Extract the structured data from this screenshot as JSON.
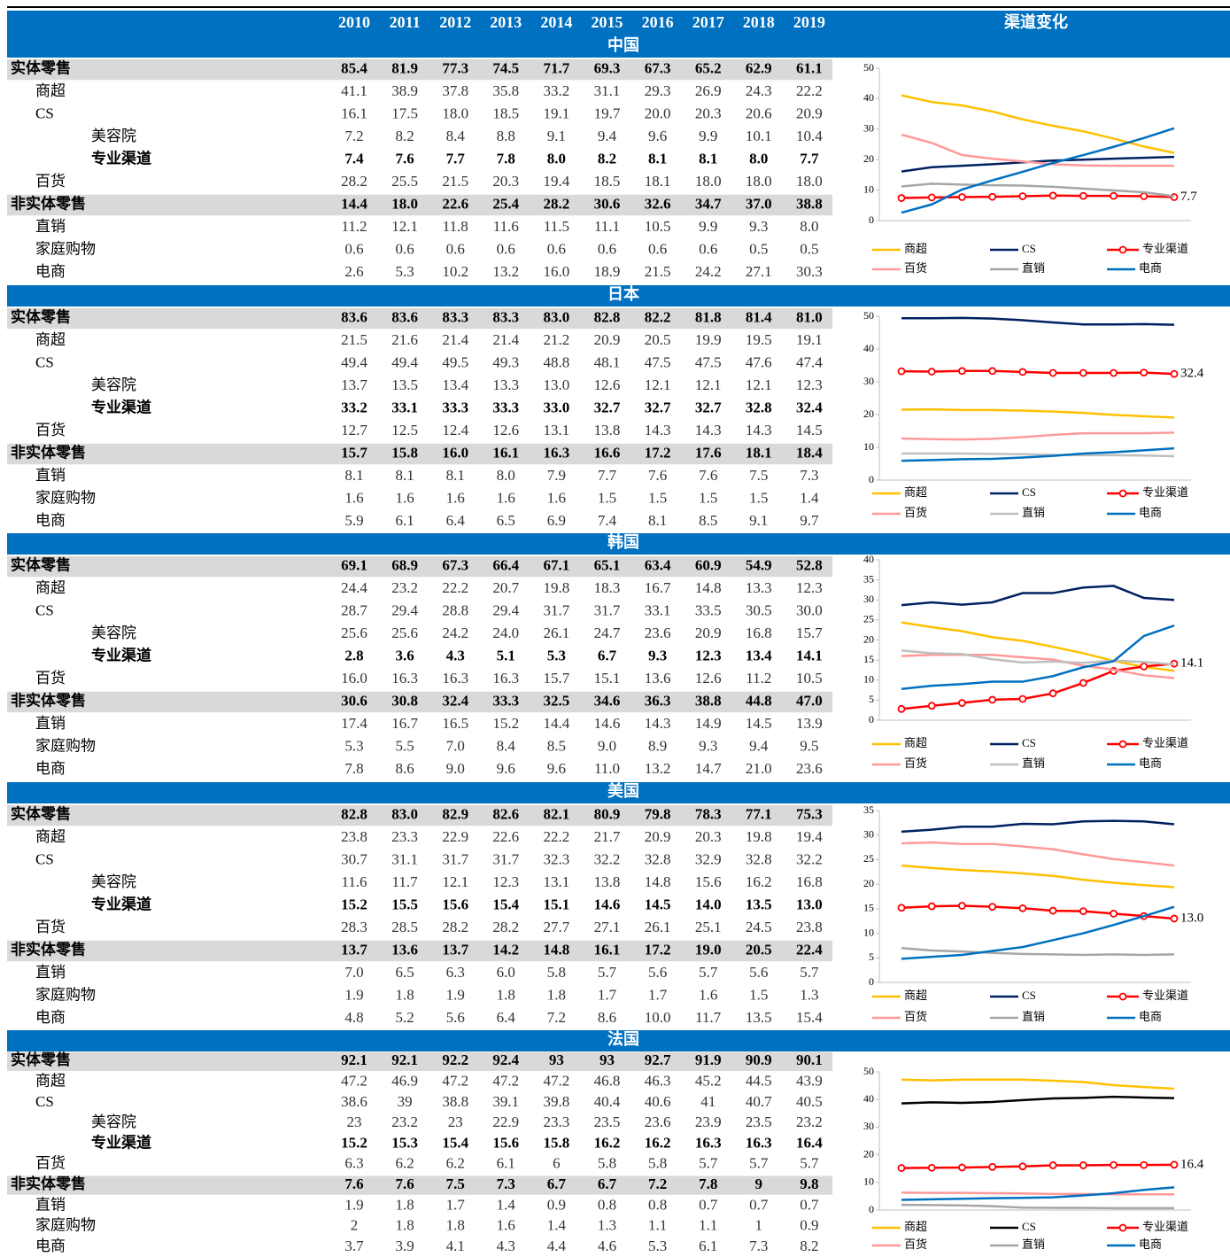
{
  "header": {
    "years": [
      "2010",
      "2011",
      "2012",
      "2013",
      "2014",
      "2015",
      "2016",
      "2017",
      "2018",
      "2019"
    ],
    "chart_title": "渠道变化"
  },
  "sections": [
    {
      "title": "中国",
      "rows": [
        {
          "label": "实体零售",
          "values": [
            "85.4",
            "81.9",
            "77.3",
            "74.5",
            "71.7",
            "69.3",
            "67.3",
            "65.2",
            "62.9",
            "61.1"
          ]
        },
        {
          "label": "商超",
          "values": [
            "41.1",
            "38.9",
            "37.8",
            "35.8",
            "33.2",
            "31.1",
            "29.3",
            "26.9",
            "24.3",
            "22.2"
          ]
        },
        {
          "label": "CS",
          "values": [
            "16.1",
            "17.5",
            "18.0",
            "18.5",
            "19.1",
            "19.7",
            "20.0",
            "20.3",
            "20.6",
            "20.9"
          ]
        },
        {
          "label": "美容院",
          "values": [
            "7.2",
            "8.2",
            "8.4",
            "8.8",
            "9.1",
            "9.4",
            "9.6",
            "9.9",
            "10.1",
            "10.4"
          ]
        },
        {
          "label": "专业渠道",
          "values": [
            "7.4",
            "7.6",
            "7.7",
            "7.8",
            "8.0",
            "8.2",
            "8.1",
            "8.1",
            "8.0",
            "7.7"
          ]
        },
        {
          "label": "百货",
          "values": [
            "28.2",
            "25.5",
            "21.5",
            "20.3",
            "19.4",
            "18.5",
            "18.1",
            "18.0",
            "18.0",
            "18.0"
          ]
        },
        {
          "label": "非实体零售",
          "values": [
            "14.4",
            "18.0",
            "22.6",
            "25.4",
            "28.2",
            "30.6",
            "32.6",
            "34.7",
            "37.0",
            "38.8"
          ]
        },
        {
          "label": "直销",
          "values": [
            "11.2",
            "12.1",
            "11.8",
            "11.6",
            "11.5",
            "11.1",
            "10.5",
            "9.9",
            "9.3",
            "8.0"
          ]
        },
        {
          "label": "家庭购物",
          "values": [
            "0.6",
            "0.6",
            "0.6",
            "0.6",
            "0.6",
            "0.6",
            "0.6",
            "0.6",
            "0.5",
            "0.5"
          ]
        },
        {
          "label": "电商",
          "values": [
            "2.6",
            "5.3",
            "10.2",
            "13.2",
            "16.0",
            "18.9",
            "21.5",
            "24.2",
            "27.1",
            "30.3"
          ]
        }
      ],
      "chart": {
        "ylim": [
          0,
          50
        ],
        "yticks": [
          0,
          10,
          20,
          30,
          40,
          50
        ],
        "series": [
          {
            "row": 1,
            "color": "#ffc000"
          },
          {
            "row": 2,
            "color": "#002060"
          },
          {
            "row": 4,
            "color": "#ff0000",
            "markers": true,
            "end_label": true
          },
          {
            "row": 5,
            "color": "#ff9999"
          },
          {
            "row": 7,
            "color": "#a6a6a6"
          },
          {
            "row": 9,
            "color": "#0070c0"
          }
        ]
      }
    },
    {
      "title": "日本",
      "rows": [
        {
          "label": "实体零售",
          "values": [
            "83.6",
            "83.6",
            "83.3",
            "83.3",
            "83.0",
            "82.8",
            "82.2",
            "81.8",
            "81.4",
            "81.0"
          ]
        },
        {
          "label": "商超",
          "values": [
            "21.5",
            "21.6",
            "21.4",
            "21.4",
            "21.2",
            "20.9",
            "20.5",
            "19.9",
            "19.5",
            "19.1"
          ]
        },
        {
          "label": "CS",
          "values": [
            "49.4",
            "49.4",
            "49.5",
            "49.3",
            "48.8",
            "48.1",
            "47.5",
            "47.5",
            "47.6",
            "47.4"
          ]
        },
        {
          "label": "美容院",
          "values": [
            "13.7",
            "13.5",
            "13.4",
            "13.3",
            "13.0",
            "12.6",
            "12.1",
            "12.1",
            "12.1",
            "12.3"
          ]
        },
        {
          "label": "专业渠道",
          "values": [
            "33.2",
            "33.1",
            "33.3",
            "33.3",
            "33.0",
            "32.7",
            "32.7",
            "32.7",
            "32.8",
            "32.4"
          ]
        },
        {
          "label": "百货",
          "values": [
            "12.7",
            "12.5",
            "12.4",
            "12.6",
            "13.1",
            "13.8",
            "14.3",
            "14.3",
            "14.3",
            "14.5"
          ]
        },
        {
          "label": "非实体零售",
          "values": [
            "15.7",
            "15.8",
            "16.0",
            "16.1",
            "16.3",
            "16.6",
            "17.2",
            "17.6",
            "18.1",
            "18.4"
          ]
        },
        {
          "label": "直销",
          "values": [
            "8.1",
            "8.1",
            "8.1",
            "8.0",
            "7.9",
            "7.7",
            "7.6",
            "7.6",
            "7.5",
            "7.3"
          ]
        },
        {
          "label": "家庭购物",
          "values": [
            "1.6",
            "1.6",
            "1.6",
            "1.6",
            "1.6",
            "1.5",
            "1.5",
            "1.5",
            "1.5",
            "1.4"
          ]
        },
        {
          "label": "电商",
          "values": [
            "5.9",
            "6.1",
            "6.4",
            "6.5",
            "6.9",
            "7.4",
            "8.1",
            "8.5",
            "9.1",
            "9.7"
          ]
        }
      ],
      "chart": {
        "ylim": [
          0,
          50
        ],
        "yticks": [
          0,
          10,
          20,
          30,
          40,
          50
        ],
        "series": [
          {
            "row": 1,
            "color": "#ffc000"
          },
          {
            "row": 2,
            "color": "#002060"
          },
          {
            "row": 4,
            "color": "#ff0000",
            "markers": true,
            "end_label": true
          },
          {
            "row": 5,
            "color": "#ff9999"
          },
          {
            "row": 7,
            "color": "#bfbfbf"
          },
          {
            "row": 9,
            "color": "#0070c0"
          }
        ]
      }
    },
    {
      "title": "韩国",
      "rows": [
        {
          "label": "实体零售",
          "values": [
            "69.1",
            "68.9",
            "67.3",
            "66.4",
            "67.1",
            "65.1",
            "63.4",
            "60.9",
            "54.9",
            "52.8"
          ]
        },
        {
          "label": "商超",
          "values": [
            "24.4",
            "23.2",
            "22.2",
            "20.7",
            "19.8",
            "18.3",
            "16.7",
            "14.8",
            "13.3",
            "12.3"
          ]
        },
        {
          "label": "CS",
          "values": [
            "28.7",
            "29.4",
            "28.8",
            "29.4",
            "31.7",
            "31.7",
            "33.1",
            "33.5",
            "30.5",
            "30.0"
          ]
        },
        {
          "label": "美容院",
          "values": [
            "25.6",
            "25.6",
            "24.2",
            "24.0",
            "26.1",
            "24.7",
            "23.6",
            "20.9",
            "16.8",
            "15.7"
          ]
        },
        {
          "label": "专业渠道",
          "values": [
            "2.8",
            "3.6",
            "4.3",
            "5.1",
            "5.3",
            "6.7",
            "9.3",
            "12.3",
            "13.4",
            "14.1"
          ]
        },
        {
          "label": "百货",
          "values": [
            "16.0",
            "16.3",
            "16.3",
            "16.3",
            "15.7",
            "15.1",
            "13.6",
            "12.6",
            "11.2",
            "10.5"
          ]
        },
        {
          "label": "非实体零售",
          "values": [
            "30.6",
            "30.8",
            "32.4",
            "33.3",
            "32.5",
            "34.6",
            "36.3",
            "38.8",
            "44.8",
            "47.0"
          ]
        },
        {
          "label": "直销",
          "values": [
            "17.4",
            "16.7",
            "16.5",
            "15.2",
            "14.4",
            "14.6",
            "14.3",
            "14.9",
            "14.5",
            "13.9"
          ]
        },
        {
          "label": "家庭购物",
          "values": [
            "5.3",
            "5.5",
            "7.0",
            "8.4",
            "8.5",
            "9.0",
            "8.9",
            "9.3",
            "9.4",
            "9.5"
          ]
        },
        {
          "label": "电商",
          "values": [
            "7.8",
            "8.6",
            "9.0",
            "9.6",
            "9.6",
            "11.0",
            "13.2",
            "14.7",
            "21.0",
            "23.6"
          ]
        }
      ],
      "chart": {
        "ylim": [
          0,
          40
        ],
        "yticks": [
          0,
          5,
          10,
          15,
          20,
          25,
          30,
          35,
          40
        ],
        "series": [
          {
            "row": 1,
            "color": "#ffc000"
          },
          {
            "row": 2,
            "color": "#002060"
          },
          {
            "row": 4,
            "color": "#ff0000",
            "markers": true,
            "end_label": true
          },
          {
            "row": 5,
            "color": "#ff9999"
          },
          {
            "row": 7,
            "color": "#bfbfbf"
          },
          {
            "row": 9,
            "color": "#0070c0"
          }
        ]
      }
    },
    {
      "title": "美国",
      "rows": [
        {
          "label": "实体零售",
          "values": [
            "82.8",
            "83.0",
            "82.9",
            "82.6",
            "82.1",
            "80.9",
            "79.8",
            "78.3",
            "77.1",
            "75.3"
          ]
        },
        {
          "label": "商超",
          "values": [
            "23.8",
            "23.3",
            "22.9",
            "22.6",
            "22.2",
            "21.7",
            "20.9",
            "20.3",
            "19.8",
            "19.4"
          ]
        },
        {
          "label": "CS",
          "values": [
            "30.7",
            "31.1",
            "31.7",
            "31.7",
            "32.3",
            "32.2",
            "32.8",
            "32.9",
            "32.8",
            "32.2"
          ]
        },
        {
          "label": "美容院",
          "values": [
            "11.6",
            "11.7",
            "12.1",
            "12.3",
            "13.1",
            "13.8",
            "14.8",
            "15.6",
            "16.2",
            "16.8"
          ]
        },
        {
          "label": "专业渠道",
          "values": [
            "15.2",
            "15.5",
            "15.6",
            "15.4",
            "15.1",
            "14.6",
            "14.5",
            "14.0",
            "13.5",
            "13.0"
          ]
        },
        {
          "label": "百货",
          "values": [
            "28.3",
            "28.5",
            "28.2",
            "28.2",
            "27.7",
            "27.1",
            "26.1",
            "25.1",
            "24.5",
            "23.8"
          ]
        },
        {
          "label": "非实体零售",
          "values": [
            "13.7",
            "13.6",
            "13.7",
            "14.2",
            "14.8",
            "16.1",
            "17.2",
            "19.0",
            "20.5",
            "22.4"
          ]
        },
        {
          "label": "直销",
          "values": [
            "7.0",
            "6.5",
            "6.3",
            "6.0",
            "5.8",
            "5.7",
            "5.6",
            "5.7",
            "5.6",
            "5.7"
          ]
        },
        {
          "label": "家庭购物",
          "values": [
            "1.9",
            "1.8",
            "1.9",
            "1.8",
            "1.8",
            "1.7",
            "1.7",
            "1.6",
            "1.5",
            "1.3"
          ]
        },
        {
          "label": "电商",
          "values": [
            "4.8",
            "5.2",
            "5.6",
            "6.4",
            "7.2",
            "8.6",
            "10.0",
            "11.7",
            "13.5",
            "15.4"
          ]
        }
      ],
      "chart": {
        "ylim": [
          0,
          35
        ],
        "yticks": [
          0,
          5,
          10,
          15,
          20,
          25,
          30,
          35
        ],
        "series": [
          {
            "row": 1,
            "color": "#ffc000"
          },
          {
            "row": 2,
            "color": "#002060"
          },
          {
            "row": 4,
            "color": "#ff0000",
            "markers": true,
            "end_label": true
          },
          {
            "row": 5,
            "color": "#ff9999"
          },
          {
            "row": 7,
            "color": "#a6a6a6"
          },
          {
            "row": 9,
            "color": "#0070c0"
          }
        ]
      }
    },
    {
      "title": "法国",
      "rows": [
        {
          "label": "实体零售",
          "values": [
            "92.1",
            "92.1",
            "92.2",
            "92.4",
            "93",
            "93",
            "92.7",
            "91.9",
            "90.9",
            "90.1"
          ]
        },
        {
          "label": "商超",
          "values": [
            "47.2",
            "46.9",
            "47.2",
            "47.2",
            "47.2",
            "46.8",
            "46.3",
            "45.2",
            "44.5",
            "43.9"
          ]
        },
        {
          "label": "CS",
          "values": [
            "38.6",
            "39",
            "38.8",
            "39.1",
            "39.8",
            "40.4",
            "40.6",
            "41",
            "40.7",
            "40.5"
          ]
        },
        {
          "label": "美容院",
          "values": [
            "23",
            "23.2",
            "23",
            "22.9",
            "23.3",
            "23.5",
            "23.6",
            "23.9",
            "23.5",
            "23.2"
          ]
        },
        {
          "label": "专业渠道",
          "values": [
            "15.2",
            "15.3",
            "15.4",
            "15.6",
            "15.8",
            "16.2",
            "16.2",
            "16.3",
            "16.3",
            "16.4"
          ]
        },
        {
          "label": "百货",
          "values": [
            "6.3",
            "6.2",
            "6.2",
            "6.1",
            "6",
            "5.8",
            "5.8",
            "5.7",
            "5.7",
            "5.7"
          ]
        },
        {
          "label": "非实体零售",
          "values": [
            "7.6",
            "7.6",
            "7.5",
            "7.3",
            "6.7",
            "6.7",
            "7.2",
            "7.8",
            "9",
            "9.8"
          ]
        },
        {
          "label": "直销",
          "values": [
            "1.9",
            "1.8",
            "1.7",
            "1.4",
            "0.9",
            "0.8",
            "0.8",
            "0.7",
            "0.7",
            "0.7"
          ]
        },
        {
          "label": "家庭购物",
          "values": [
            "2",
            "1.8",
            "1.8",
            "1.6",
            "1.4",
            "1.3",
            "1.1",
            "1.1",
            "1",
            "0.9"
          ]
        },
        {
          "label": "电商",
          "values": [
            "3.7",
            "3.9",
            "4.1",
            "4.3",
            "4.4",
            "4.6",
            "5.3",
            "6.1",
            "7.3",
            "8.2"
          ]
        }
      ],
      "chart": {
        "ylim": [
          0,
          50
        ],
        "yticks": [
          0,
          10,
          20,
          30,
          40,
          50
        ],
        "series": [
          {
            "row": 1,
            "color": "#ffc000"
          },
          {
            "row": 2,
            "color": "#000000"
          },
          {
            "row": 4,
            "color": "#ff0000",
            "markers": true,
            "end_label": true
          },
          {
            "row": 5,
            "color": "#ff9999"
          },
          {
            "row": 7,
            "color": "#a6a6a6"
          },
          {
            "row": 9,
            "color": "#0070c0"
          }
        ]
      }
    }
  ]
}
